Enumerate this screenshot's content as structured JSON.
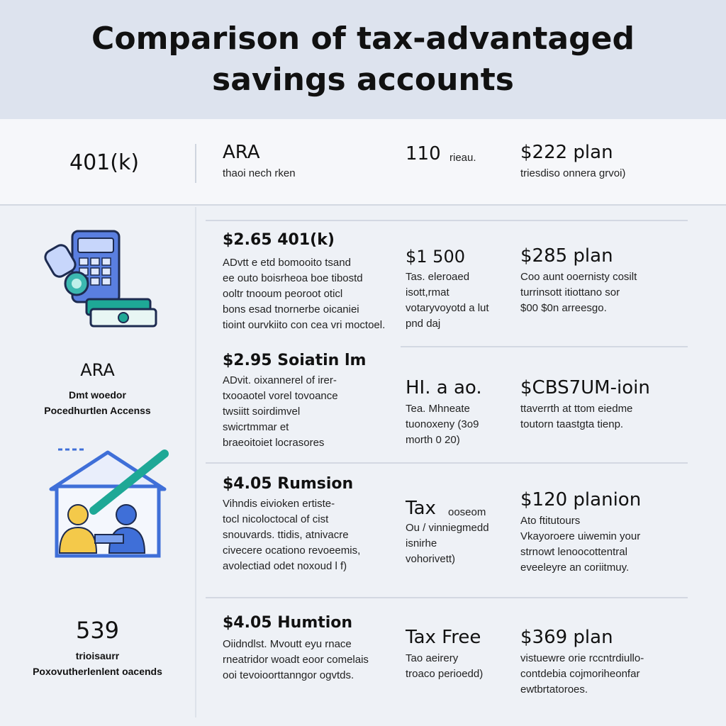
{
  "title": "Comparison of tax-advantaged savings accounts",
  "top_row": {
    "col1": "401(k)",
    "col2_title": "ARA",
    "col2_sub": "thaoi nech rken",
    "col3_num": "110",
    "col3_suffix": "rieau.",
    "col4_title": "$222 plan",
    "col4_sub": "triesdiso onnera grvoi)"
  },
  "sidebar": {
    "ara_label": "ARA",
    "ara_sub": "Dmt woedor\nPocedhurtlen Accenss",
    "n539_label": "539",
    "n539_sub": "trioisaurr\nPoxovutherlenlent oacends"
  },
  "rows": [
    {
      "title": "$2.65 401(k)",
      "desc": "ADvtt e etd bomooito tsand\nee outo boisrheoa boe tibostd\nooltr tnooum peoroot oticl\nbons esad tnornerbe oicaniei\ntioint ourvkiito con cea vri moctoel.",
      "mid_title": "$1 500",
      "mid_desc": "Tas. eleroaed\nisott,rmat\nvotaryvoyotd a lut\npnd daj",
      "right_title": "$285 plan",
      "right_desc": "Coo aunt ooernisty cosilt\nturrinsott itiottano sor\n$00 $0n arreesgo."
    },
    {
      "title": "$2.95 Soiatin lm",
      "desc": "ADvit. oixannerel of irer-\ntxooaotel vorel tovoance\ntwsiitt soirdimvel\nswicrtmmar et\nbraeoitoiet locrasores",
      "mid_title": "HI. a ao.",
      "mid_desc": "Tea. Mhneate\ntuonoxeny (3o9\nmorth 0 20)",
      "right_title": "$CBS7UM-ioin",
      "right_desc": "ttaverrth at ttom eiedme\ntoutorn taastgta tienp."
    },
    {
      "title": "$4.05 Rumsion",
      "desc": "Vihndis eivioken ertiste-\ntocl nicoloctocal of cist\nsnouvards. ttidis, atnivacre\ncivecere ocationo revoeemis,\navolectiad odet noxoud l f)",
      "mid_title": "Tax",
      "mid_suffix": "ooseom",
      "mid_desc": "Ou / vinniegmedd\nisnirhe\nvohorivett)",
      "right_title": "$120 planion",
      "right_desc": "Ato ftitutours\nVkayoroere uiwemin your\nstrnowt lenoocottentral\neveeleyre an coriitmuy."
    },
    {
      "title": "$4.05 Humtion",
      "desc": "Oiidndlst. Mvoutt eyu rnace\nrneatridor woadt eoor comelais\nooi tevoioorttanngor ogvtds.",
      "mid_title": "Tax Free",
      "mid_desc": "Tao aeirery\ntroaco perioedd)",
      "right_title": "$369 plan",
      "right_desc": "vistuewre orie rccntrdiullo-\ncontdebia cojmoriheonfar\newtbrtatoroes."
    }
  ],
  "colors": {
    "header_bg": "#dde3ee",
    "page_bg": "#eef1f6",
    "accent_teal": "#1ea896",
    "accent_blue": "#3f6fd8",
    "person_yellow": "#f4c94a"
  },
  "icons": {
    "top": "calculator-money-icon",
    "bottom": "house-family-icon"
  }
}
